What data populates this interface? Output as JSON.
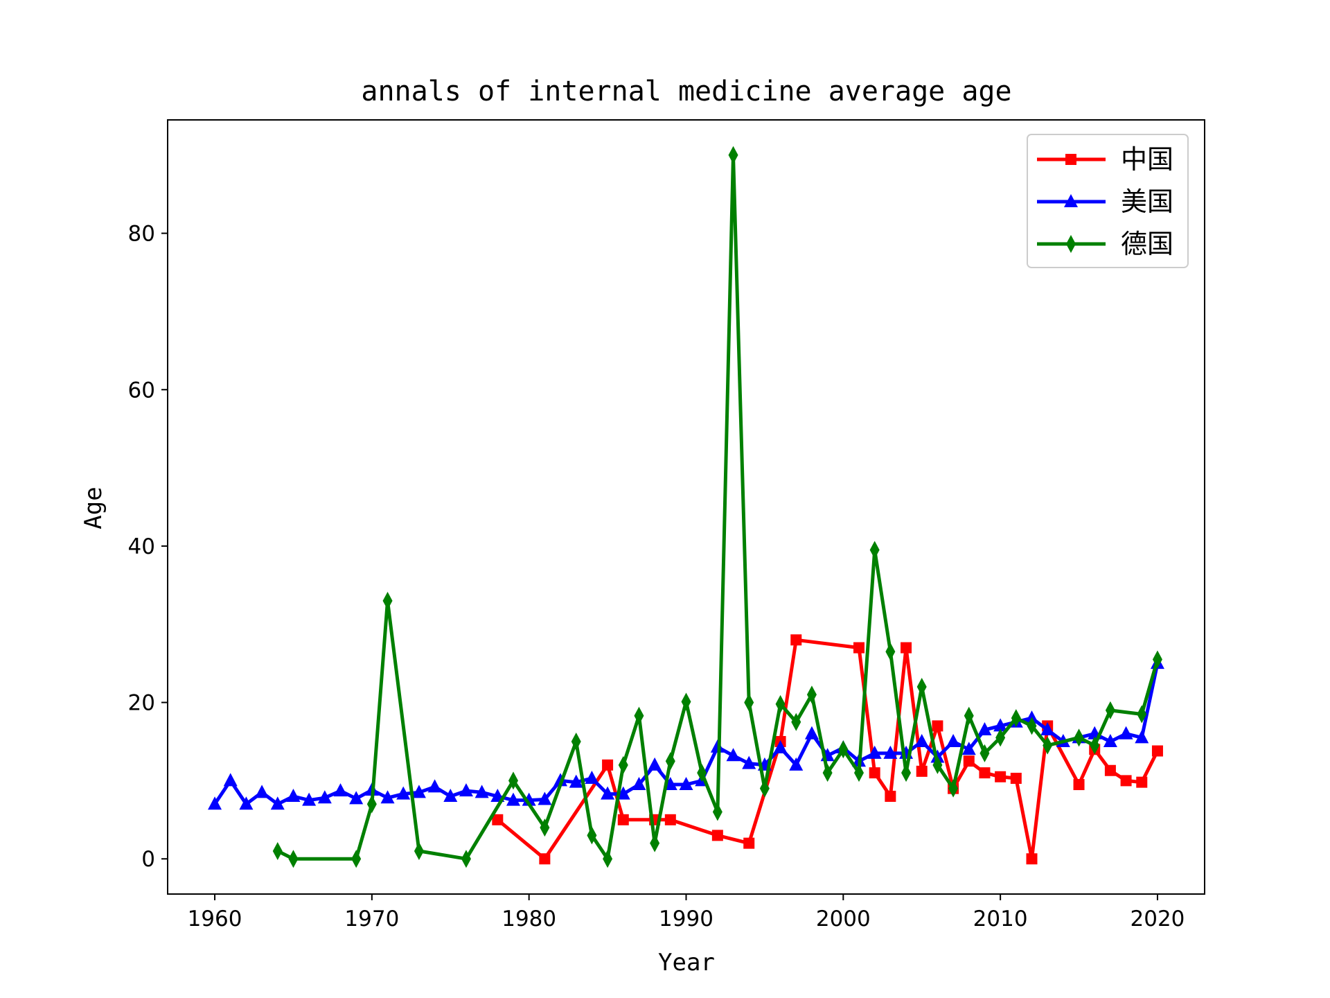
{
  "chart_data": {
    "type": "line",
    "title": "annals of internal medicine average age",
    "xlabel": "Year",
    "ylabel": "Age",
    "xlim": [
      1957,
      2023
    ],
    "ylim": [
      -4.5,
      94.5
    ],
    "xticks": [
      1960,
      1970,
      1980,
      1990,
      2000,
      2010,
      2020
    ],
    "yticks": [
      0,
      20,
      40,
      60,
      80
    ],
    "grid": false,
    "legend": "top-right",
    "series": [
      {
        "name": "中国",
        "color": "#ff0000",
        "marker": "square",
        "x": [
          1978,
          1981,
          1985,
          1986,
          1988,
          1989,
          1992,
          1994,
          1996,
          1997,
          2001,
          2002,
          2003,
          2004,
          2005,
          2006,
          2007,
          2008,
          2009,
          2010,
          2011,
          2012,
          2013,
          2015,
          2016,
          2017,
          2018,
          2019,
          2020
        ],
        "y": [
          5,
          0,
          12,
          5,
          5,
          5,
          3,
          2,
          15,
          28,
          27,
          11,
          8,
          27,
          11.2,
          17,
          9,
          12.5,
          11,
          10.5,
          10.3,
          0,
          17,
          9.5,
          14,
          11.3,
          10,
          9.8,
          13.8
        ]
      },
      {
        "name": "美国",
        "color": "#0000ff",
        "marker": "triangle",
        "x": [
          1960,
          1961,
          1962,
          1963,
          1964,
          1965,
          1966,
          1967,
          1968,
          1969,
          1970,
          1971,
          1972,
          1973,
          1974,
          1975,
          1976,
          1977,
          1978,
          1979,
          1980,
          1981,
          1982,
          1983,
          1984,
          1985,
          1986,
          1987,
          1988,
          1989,
          1990,
          1991,
          1992,
          1993,
          1994,
          1995,
          1996,
          1997,
          1998,
          1999,
          2000,
          2001,
          2002,
          2003,
          2004,
          2005,
          2006,
          2007,
          2008,
          2009,
          2010,
          2011,
          2012,
          2013,
          2014,
          2015,
          2016,
          2017,
          2018,
          2019,
          2020
        ],
        "y": [
          7,
          10,
          7,
          8.5,
          7,
          8,
          7.5,
          7.8,
          8.7,
          7.7,
          8.8,
          7.8,
          8.3,
          8.5,
          9.2,
          8,
          8.7,
          8.5,
          8,
          7.5,
          7.5,
          7.6,
          10,
          9.8,
          10.3,
          8.3,
          8.3,
          9.5,
          12,
          9.5,
          9.5,
          10,
          14.3,
          13.2,
          12.2,
          12,
          14.2,
          12,
          16,
          13.2,
          14.2,
          12.5,
          13.5,
          13.5,
          13.5,
          15,
          13,
          15,
          14,
          16.5,
          17,
          17.5,
          18,
          16.5,
          15,
          15.5,
          16,
          15,
          16,
          15.5,
          25
        ]
      },
      {
        "name": "德国",
        "color": "#008000",
        "marker": "diamond",
        "x": [
          1964,
          1965,
          1969,
          1970,
          1971,
          1973,
          1976,
          1979,
          1981,
          1983,
          1984,
          1985,
          1986,
          1987,
          1988,
          1989,
          1990,
          1991,
          1992,
          1993,
          1994,
          1995,
          1996,
          1997,
          1998,
          1999,
          2000,
          2001,
          2002,
          2003,
          2004,
          2005,
          2006,
          2007,
          2008,
          2009,
          2010,
          2011,
          2012,
          2013,
          2015,
          2016,
          2017,
          2019,
          2020
        ],
        "y": [
          1,
          0,
          0,
          7,
          33,
          1,
          0,
          10,
          4,
          15,
          3,
          0,
          12,
          18.3,
          2,
          12.5,
          20.1,
          11,
          6,
          90,
          20,
          9,
          19.8,
          17.5,
          21,
          11,
          14,
          11,
          39.5,
          26.5,
          11,
          22,
          12,
          9,
          18.3,
          13.5,
          15.5,
          18,
          17,
          14.5,
          15.5,
          14.5,
          19,
          18.5,
          25.5
        ]
      }
    ]
  }
}
